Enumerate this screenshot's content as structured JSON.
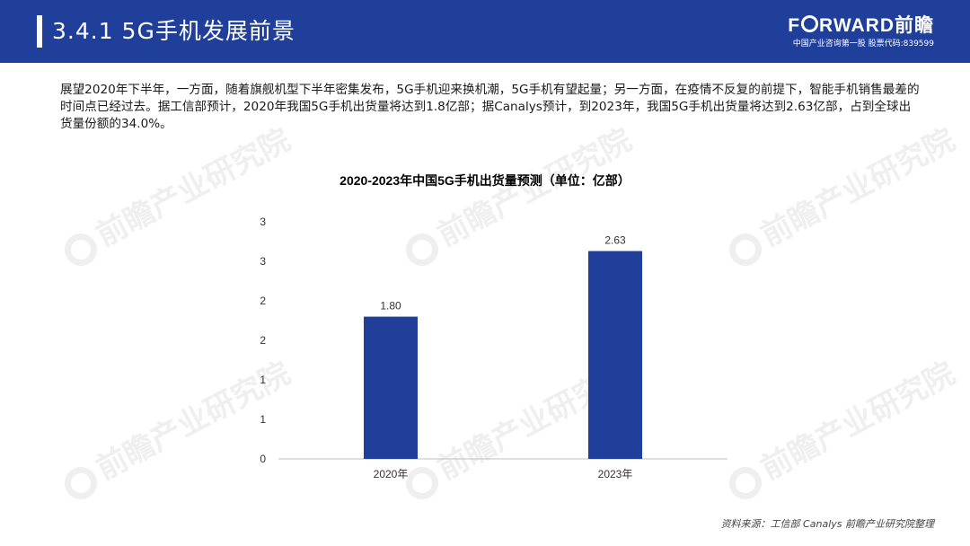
{
  "header": {
    "title": "3.4.1 5G手机发展前景",
    "logo_text_prefix": "F",
    "logo_text_suffix": "RWARD前瞻",
    "logo_subtitle": "中国产业咨询第一股 股票代码:839599"
  },
  "intro": {
    "paragraph": "展望2020年下半年，一方面，随着旗舰机型下半年密集发布，5G手机迎来换机潮，5G手机有望起量；另一方面，在疫情不反复的前提下，智能手机销售最差的时间点已经过去。据工信部预计，2020年我国5G手机出货量将达到1.8亿部；据Canalys预计，到2023年，我国5G手机出货量将达到2.63亿部，占到全球出货量份额的34.0%。"
  },
  "watermark": {
    "text": "前瞻产业研究院"
  },
  "source": {
    "text": "资料来源：工信部 Canalys 前瞻产业研究院整理"
  },
  "chart_data": {
    "type": "bar",
    "title": "2020-2023年中国5G手机出货量预测（单位：亿部）",
    "categories": [
      "2020年",
      "2023年"
    ],
    "values": [
      1.8,
      2.63
    ],
    "value_labels": [
      "1.80",
      "2.63"
    ],
    "ylim": [
      0,
      3
    ],
    "ytick_labels": [
      "0",
      "1",
      "1",
      "2",
      "2",
      "3",
      "3"
    ],
    "xlabel": "",
    "ylabel": "",
    "grid": false,
    "bar_color": "#1f3f9b",
    "axis_color": "#bfbfbf",
    "text_color": "#333333"
  },
  "colors": {
    "header_bg": "#1f3f9b",
    "header_text": "#ffffff"
  }
}
